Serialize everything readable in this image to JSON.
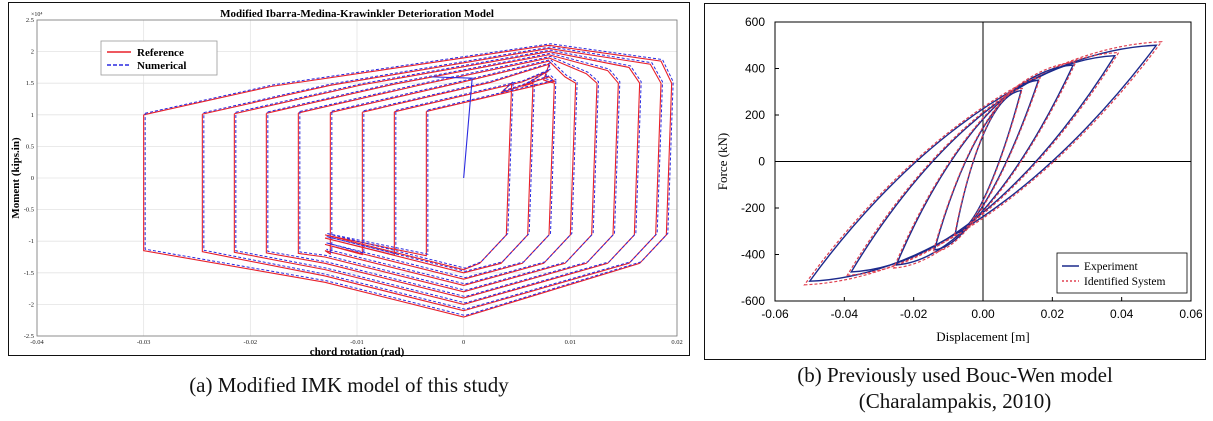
{
  "chart_data": [
    {
      "type": "line",
      "title": "Modified Ibarra-Medina-Krawinkler Deterioration Model",
      "xlabel": "chord rotation (rad)",
      "ylabel": "Moment (kips.in)",
      "y_multiplier": "×10⁴",
      "xlim": [
        -0.04,
        0.02
      ],
      "ylim": [
        -2.5,
        2.5
      ],
      "xticks": [
        "-0.04",
        "-0.03",
        "-0.02",
        "-0.01",
        "0",
        "0.01",
        "0.02"
      ],
      "yticks": [
        "-2.5",
        "-2",
        "-1.5",
        "-1",
        "-0.5",
        "0",
        "0.5",
        "1",
        "1.5",
        "2",
        "2.5"
      ],
      "grid": true,
      "legend_position": "top-left",
      "series": [
        {
          "name": "Reference",
          "color": "#e8202a",
          "style": "solid"
        },
        {
          "name": "Numerical",
          "color": "#2a2ae0",
          "style": "dashed"
        }
      ],
      "loops": [
        {
          "xmin": -0.03,
          "xmax": 0.0195,
          "ymax": 2.1,
          "ymin": -2.2
        },
        {
          "xmin": -0.0245,
          "xmax": 0.0185,
          "ymax": 2.05,
          "ymin": -2.1
        },
        {
          "xmin": -0.0215,
          "xmax": 0.0165,
          "ymax": 2.0,
          "ymin": -2.0
        },
        {
          "xmin": -0.0185,
          "xmax": 0.0145,
          "ymax": 1.95,
          "ymin": -1.9
        },
        {
          "xmin": -0.0155,
          "xmax": 0.0125,
          "ymax": 1.9,
          "ymin": -1.8
        },
        {
          "xmin": -0.0125,
          "xmax": 0.0105,
          "ymax": 1.85,
          "ymin": -1.7
        },
        {
          "xmin": -0.0095,
          "xmax": 0.0085,
          "ymax": 1.8,
          "ymin": -1.6
        },
        {
          "xmin": -0.0065,
          "xmax": 0.0065,
          "ymax": 1.7,
          "ymin": -1.5
        },
        {
          "xmin": -0.0035,
          "xmax": 0.0045,
          "ymax": 1.6,
          "ymin": -1.45
        }
      ],
      "caption": "(a) Modified IMK model of this study"
    },
    {
      "type": "line",
      "title": "",
      "xlabel": "Displacement [m]",
      "ylabel": "Force (kN)",
      "xlim": [
        -0.06,
        0.06
      ],
      "ylim": [
        -600,
        600
      ],
      "xticks": [
        "-0.06",
        "-0.04",
        "-0.02",
        "0.00",
        "0.02",
        "0.04",
        "0.06"
      ],
      "yticks": [
        "600",
        "400",
        "200",
        "0",
        "-200",
        "-400",
        "-600"
      ],
      "grid": false,
      "legend_position": "bottom-right",
      "series": [
        {
          "name": "Experiment",
          "color": "#1c2a8c",
          "style": "solid"
        },
        {
          "name": "Identified System",
          "color": "#e04050",
          "style": "dotted"
        }
      ],
      "loops": [
        {
          "dmax": 0.05,
          "fmax": 500,
          "dmin": -0.05,
          "fmin": -515
        },
        {
          "dmax": 0.038,
          "fmax": 455,
          "dmin": -0.038,
          "fmin": -475
        },
        {
          "dmax": 0.026,
          "fmax": 415,
          "dmin": -0.025,
          "fmin": -445
        },
        {
          "dmax": 0.016,
          "fmax": 350,
          "dmin": -0.014,
          "fmin": -380
        },
        {
          "dmax": 0.011,
          "fmax": 305,
          "dmin": -0.008,
          "fmin": -310
        }
      ],
      "caption_lines": [
        "(b) Previously used Bouc-Wen model",
        "(Charalampakis, 2010)"
      ]
    }
  ]
}
